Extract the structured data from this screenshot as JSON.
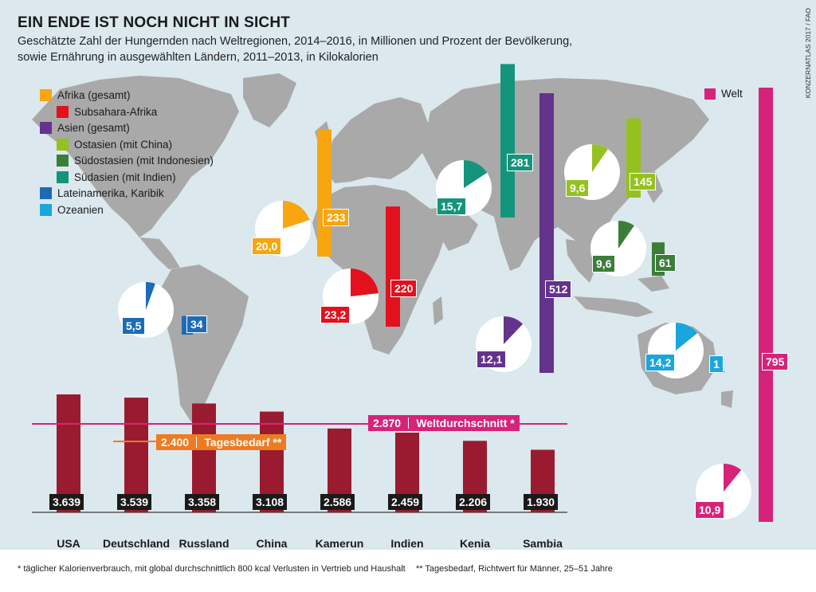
{
  "title": "EIN ENDE IST NOCH NICHT IN SICHT",
  "subtitle_line1": "Geschätzte Zahl der Hungernden nach Weltregionen, 2014–2016, in Millionen und Prozent der Bevölkerung,",
  "subtitle_line2": "sowie Ernährung in ausgewählten Ländern, 2011–2013, in Kilokalorien",
  "credit": "KONZERNATLAS 2017 / FAO",
  "legend": [
    {
      "label": "Afrika (gesamt)",
      "color": "#f7a511",
      "level": 0
    },
    {
      "label": "Subsahara-Afrika",
      "color": "#e3101d",
      "level": 1
    },
    {
      "label": "Asien (gesamt)",
      "color": "#64338c",
      "level": 0
    },
    {
      "label": "Ostasien (mit China)",
      "color": "#95c11f",
      "level": 1
    },
    {
      "label": "Südostasien (mit Indonesien)",
      "color": "#3c7d3a",
      "level": 1
    },
    {
      "label": "Südasien (mit Indien)",
      "color": "#14957b",
      "level": 1
    },
    {
      "label": "Lateinamerika, Karibik",
      "color": "#1c6cb5",
      "level": 0
    },
    {
      "label": "Ozeanien",
      "color": "#1aa6dc",
      "level": 0
    }
  ],
  "welt_legend": {
    "label": "Welt",
    "color": "#d6237a"
  },
  "chart_data": [
    {
      "type": "bar",
      "name": "hungry_millions",
      "categories": [
        "Afrika (gesamt)",
        "Subsahara-Afrika",
        "Asien (gesamt)",
        "Ostasien (mit China)",
        "Südostasien (mit Indonesien)",
        "Südasien (mit Indien)",
        "Lateinamerika, Karibik",
        "Ozeanien",
        "Welt"
      ],
      "values": [
        233,
        220,
        512,
        145,
        61,
        281,
        34,
        1,
        795
      ],
      "labels": [
        "233",
        "220",
        "512",
        "145",
        "61",
        "281",
        "34",
        "1",
        "795"
      ],
      "colors": [
        "#f7a511",
        "#e3101d",
        "#64338c",
        "#95c11f",
        "#3c7d3a",
        "#14957b",
        "#1c6cb5",
        "#1aa6dc",
        "#d6237a"
      ]
    },
    {
      "type": "pie",
      "name": "hungry_percent",
      "categories": [
        "Afrika (gesamt)",
        "Subsahara-Afrika",
        "Asien (gesamt)",
        "Ostasien (mit China)",
        "Südostasien (mit Indonesien)",
        "Südasien (mit Indien)",
        "Lateinamerika, Karibik",
        "Ozeanien",
        "Welt"
      ],
      "values": [
        20.0,
        23.2,
        12.1,
        9.6,
        9.6,
        15.7,
        5.5,
        14.2,
        10.9
      ],
      "labels": [
        "20,0",
        "23,2",
        "12,1",
        "9,6",
        "9,6",
        "15,7",
        "5,5",
        "14,2",
        "10,9"
      ],
      "colors": [
        "#f7a511",
        "#e3101d",
        "#64338c",
        "#95c11f",
        "#3c7d3a",
        "#14957b",
        "#1c6cb5",
        "#1aa6dc",
        "#d6237a"
      ]
    },
    {
      "type": "bar",
      "name": "kilocalories",
      "categories": [
        "USA",
        "Deutschland",
        "Russland",
        "China",
        "Kamerun",
        "Indien",
        "Kenia",
        "Sambia"
      ],
      "values": [
        3639,
        3539,
        3358,
        3108,
        2586,
        2459,
        2206,
        1930
      ],
      "labels": [
        "3.639",
        "3.539",
        "3.358",
        "3.108",
        "2.586",
        "2.459",
        "2.206",
        "1.930"
      ],
      "bar_color": "#9a1b2f",
      "reference_lines": [
        {
          "value": 2870,
          "value_label": "2.870",
          "text": "Weltdurchschnitt *",
          "color": "#d6237a"
        },
        {
          "value": 2400,
          "value_label": "2.400",
          "text": "Tagesbedarf **",
          "color": "#ee7b22"
        }
      ]
    }
  ],
  "footnote1": "* täglicher Kalorienverbrauch, mit global durchschnittlich 800 kcal Verlusten in Vertrieb und Haushalt",
  "footnote2": "** Tagesbedarf, Richtwert für Männer, 25–51 Jahre"
}
